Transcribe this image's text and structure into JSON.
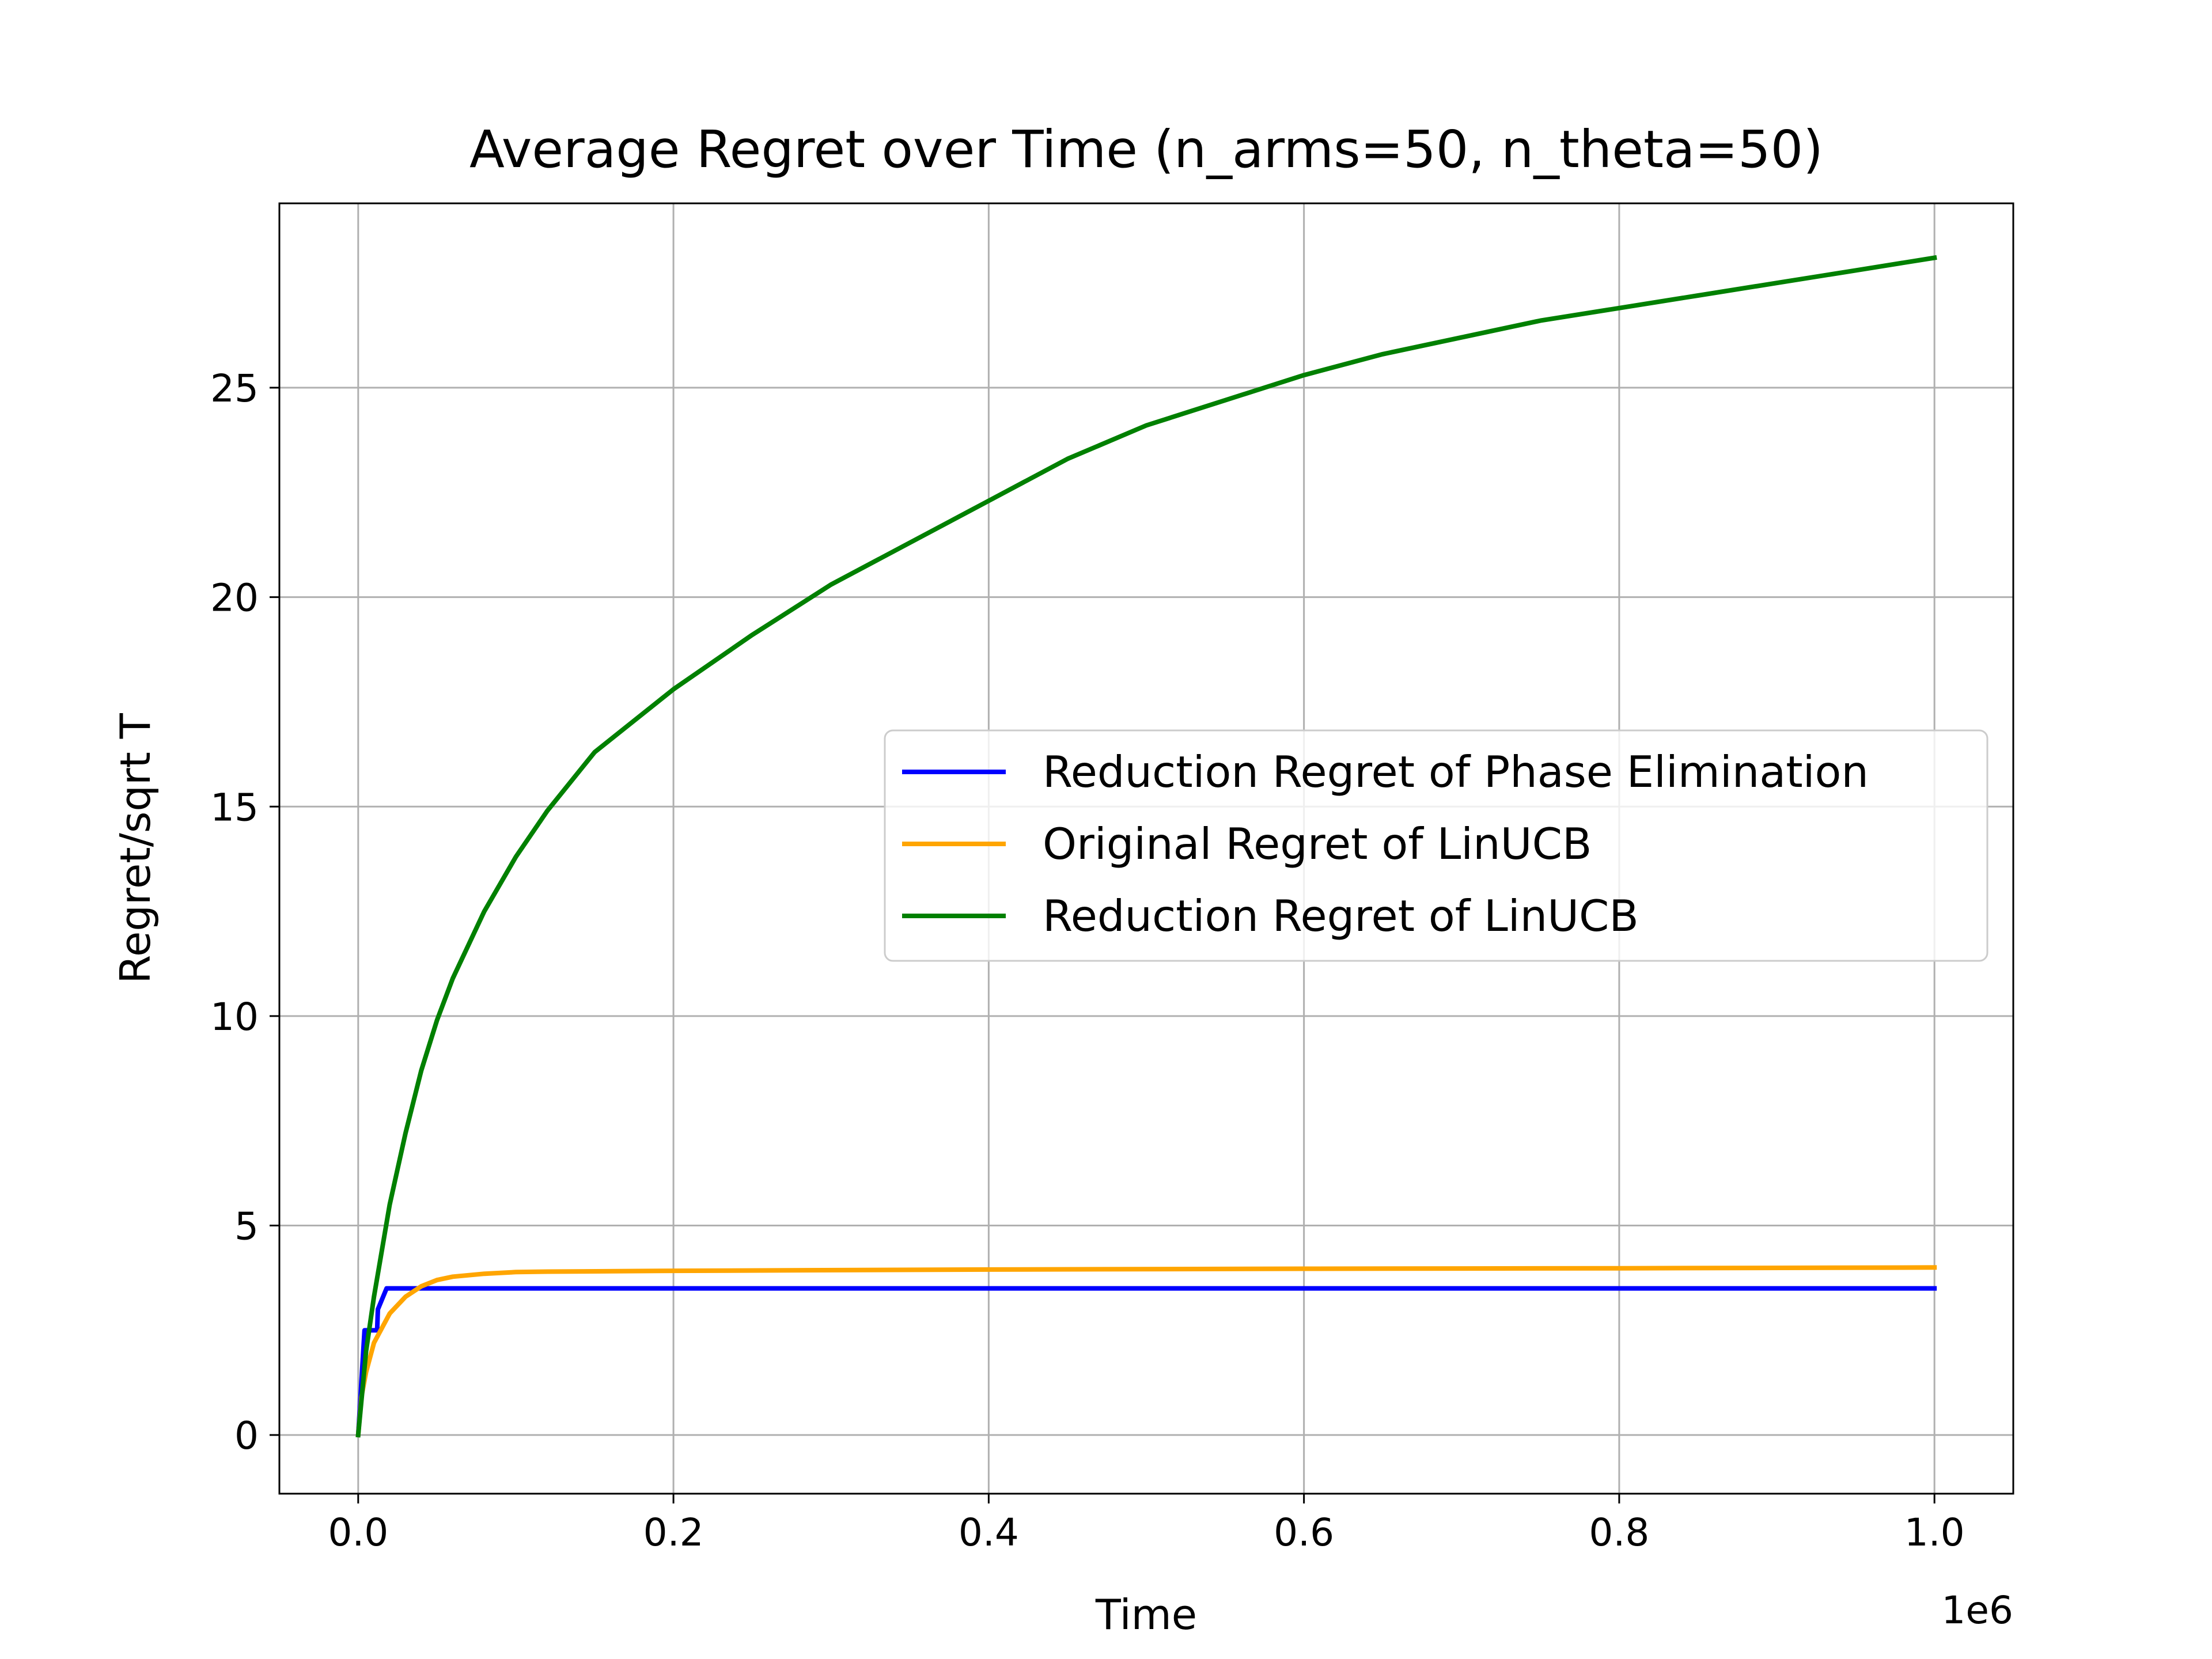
{
  "chart_data": {
    "type": "line",
    "title": "Average Regret over Time (n_arms=50, n_theta=50)",
    "xlabel": "Time",
    "ylabel": "Regret/sqrt T",
    "x_offset_label": "1e6",
    "xlim": [
      -0.05,
      1.05
    ],
    "ylim": [
      -1.4,
      29.4
    ],
    "xticks": [
      0.0,
      0.2,
      0.4,
      0.6,
      0.8,
      1.0
    ],
    "xtick_labels": [
      "0.0",
      "0.2",
      "0.4",
      "0.6",
      "0.8",
      "1.0"
    ],
    "yticks": [
      0,
      5,
      10,
      15,
      20,
      25
    ],
    "ytick_labels": [
      "0",
      "5",
      "10",
      "15",
      "20",
      "25"
    ],
    "grid": true,
    "legend_position": "center-right",
    "series": [
      {
        "name": "Reduction Regret of Phase Elimination",
        "color": "#0000ff",
        "x": [
          0.0,
          0.004,
          0.0045,
          0.012,
          0.0125,
          0.018,
          1.0
        ],
        "y": [
          0.0,
          2.5,
          2.5,
          2.5,
          3.0,
          3.5,
          3.5
        ]
      },
      {
        "name": "Original Regret of LinUCB",
        "color": "#ffa500",
        "x": [
          0.0,
          0.002,
          0.005,
          0.01,
          0.02,
          0.03,
          0.04,
          0.05,
          0.06,
          0.08,
          0.1,
          0.12,
          0.2,
          0.4,
          0.6,
          0.8,
          1.0
        ],
        "y": [
          0.0,
          0.9,
          1.5,
          2.2,
          2.9,
          3.3,
          3.55,
          3.7,
          3.78,
          3.85,
          3.89,
          3.9,
          3.92,
          3.95,
          3.97,
          3.98,
          4.0
        ]
      },
      {
        "name": "Reduction Regret of LinUCB",
        "color": "#008000",
        "x": [
          0.0,
          0.005,
          0.01,
          0.02,
          0.03,
          0.04,
          0.05,
          0.06,
          0.08,
          0.1,
          0.12,
          0.15,
          0.2,
          0.25,
          0.3,
          0.35,
          0.4,
          0.45,
          0.5,
          0.55,
          0.6,
          0.65,
          0.7,
          0.75,
          0.8,
          0.85,
          0.9,
          0.95,
          1.0
        ],
        "y": [
          0.0,
          2.0,
          3.3,
          5.5,
          7.2,
          8.7,
          9.9,
          10.9,
          12.5,
          13.8,
          14.9,
          16.3,
          17.8,
          19.1,
          20.3,
          21.3,
          22.3,
          23.3,
          24.1,
          24.7,
          25.3,
          25.8,
          26.2,
          26.6,
          26.9,
          27.2,
          27.5,
          27.8,
          28.1
        ]
      }
    ]
  }
}
